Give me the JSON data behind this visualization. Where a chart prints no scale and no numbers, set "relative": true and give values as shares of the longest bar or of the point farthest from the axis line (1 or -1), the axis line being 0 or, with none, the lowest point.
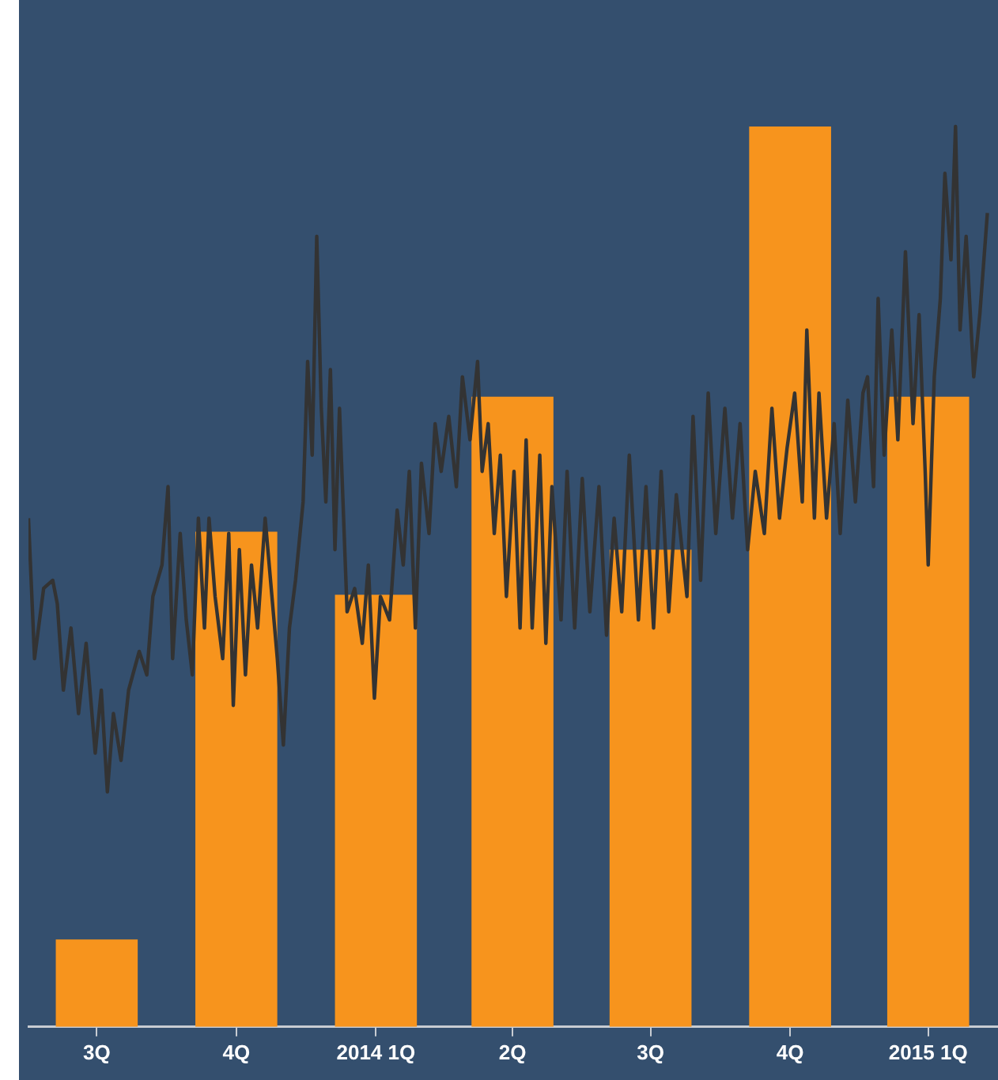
{
  "chart_data": {
    "type": "bar",
    "relative": true,
    "tick_labels": "x",
    "x": [
      "2013-08-15",
      "2013-11-15",
      "2014-02-15",
      "2014-05-16",
      "2014-08-15",
      "2014-11-15",
      "2015-02-14"
    ],
    "xlim": [
      "2013-07-01",
      "2015-04-01"
    ],
    "xticks": [
      {
        "value": "2013-08-15",
        "label": "3Q"
      },
      {
        "value": "2013-11-15",
        "label": "4Q"
      },
      {
        "value": "2014-02-15",
        "label": "2014 1Q"
      },
      {
        "value": "2014-05-16",
        "label": "2Q"
      },
      {
        "value": "2014-08-15",
        "label": "3Q"
      },
      {
        "value": "2014-11-15",
        "label": "4Q"
      },
      {
        "value": "2015-02-14",
        "label": "2015 1Q"
      }
    ],
    "series": [
      {
        "color": "#f7941d",
        "values": [
          0.097,
          0.55,
          0.48,
          0.7,
          0.53,
          1.0,
          0.7
        ]
      },
      {
        "type": "line",
        "color": "#333333",
        "x": [
          "2013-07-01",
          "2013-07-05",
          "2013-07-11",
          "2013-07-17",
          "2013-07-20",
          "2013-07-24",
          "2013-07-29",
          "2013-08-03",
          "2013-08-08",
          "2013-08-14",
          "2013-08-18",
          "2013-08-22",
          "2013-08-26",
          "2013-08-31",
          "2013-09-05",
          "2013-09-12",
          "2013-09-17",
          "2013-09-21",
          "2013-09-27",
          "2013-10-01",
          "2013-10-04",
          "2013-10-09",
          "2013-10-13",
          "2013-10-17",
          "2013-10-21",
          "2013-10-25",
          "2013-10-28",
          "2013-11-01",
          "2013-11-06",
          "2013-11-10",
          "2013-11-13",
          "2013-11-17",
          "2013-11-21",
          "2013-11-25",
          "2013-11-29",
          "2013-12-04",
          "2013-12-08",
          "2013-12-12",
          "2013-12-16",
          "2013-12-20",
          "2013-12-24",
          "2013-12-29",
          "2014-01-01",
          "2014-01-04",
          "2014-01-07",
          "2014-01-10",
          "2014-01-13",
          "2014-01-16",
          "2014-01-19",
          "2014-01-22",
          "2014-01-27",
          "2014-02-01",
          "2014-02-06",
          "2014-02-10",
          "2014-02-14",
          "2014-02-18",
          "2014-02-24",
          "2014-03-01",
          "2014-03-05",
          "2014-03-09",
          "2014-03-13",
          "2014-03-17",
          "2014-03-22",
          "2014-03-26",
          "2014-03-30",
          "2014-04-04",
          "2014-04-09",
          "2014-04-13",
          "2014-04-18",
          "2014-04-23",
          "2014-04-26",
          "2014-04-30",
          "2014-05-04",
          "2014-05-08",
          "2014-05-12",
          "2014-05-17",
          "2014-05-21",
          "2014-05-25",
          "2014-05-29",
          "2014-06-03",
          "2014-06-07",
          "2014-06-11",
          "2014-06-17",
          "2014-06-21",
          "2014-06-26",
          "2014-07-01",
          "2014-07-06",
          "2014-07-12",
          "2014-07-17",
          "2014-07-22",
          "2014-07-27",
          "2014-08-01",
          "2014-08-07",
          "2014-08-12",
          "2014-08-17",
          "2014-08-22",
          "2014-08-27",
          "2014-09-01",
          "2014-09-08",
          "2014-09-12",
          "2014-09-17",
          "2014-09-22",
          "2014-09-27",
          "2014-10-03",
          "2014-10-08",
          "2014-10-13",
          "2014-10-18",
          "2014-10-23",
          "2014-10-29",
          "2014-11-03",
          "2014-11-08",
          "2014-11-13",
          "2014-11-18",
          "2014-11-23",
          "2014-11-26",
          "2014-12-01",
          "2014-12-04",
          "2014-12-09",
          "2014-12-14",
          "2014-12-18",
          "2014-12-23",
          "2014-12-28",
          "2015-01-02",
          "2015-01-05",
          "2015-01-09",
          "2015-01-12",
          "2015-01-16",
          "2015-01-21",
          "2015-01-25",
          "2015-01-30",
          "2015-02-04",
          "2015-02-08",
          "2015-02-12",
          "2015-02-14",
          "2015-02-18",
          "2015-02-22",
          "2015-02-25",
          "2015-03-01",
          "2015-03-04",
          "2015-03-07",
          "2015-03-11",
          "2015-03-16",
          "2015-03-20",
          "2015-03-25"
        ],
        "values": [
          0.565,
          0.409,
          0.487,
          0.496,
          0.47,
          0.374,
          0.443,
          0.348,
          0.426,
          0.304,
          0.374,
          0.261,
          0.348,
          0.296,
          0.374,
          0.417,
          0.391,
          0.478,
          0.513,
          0.6,
          0.409,
          0.548,
          0.452,
          0.391,
          0.565,
          0.443,
          0.565,
          0.478,
          0.409,
          0.548,
          0.357,
          0.53,
          0.391,
          0.513,
          0.443,
          0.565,
          0.487,
          0.409,
          0.313,
          0.443,
          0.496,
          0.583,
          0.739,
          0.635,
          0.878,
          0.687,
          0.583,
          0.73,
          0.53,
          0.687,
          0.461,
          0.487,
          0.426,
          0.513,
          0.365,
          0.478,
          0.452,
          0.574,
          0.513,
          0.617,
          0.443,
          0.626,
          0.548,
          0.67,
          0.617,
          0.678,
          0.6,
          0.722,
          0.652,
          0.739,
          0.617,
          0.67,
          0.548,
          0.635,
          0.478,
          0.617,
          0.443,
          0.652,
          0.443,
          0.635,
          0.426,
          0.6,
          0.452,
          0.617,
          0.443,
          0.609,
          0.461,
          0.6,
          0.435,
          0.565,
          0.461,
          0.635,
          0.452,
          0.6,
          0.443,
          0.617,
          0.461,
          0.591,
          0.478,
          0.678,
          0.496,
          0.704,
          0.548,
          0.687,
          0.565,
          0.67,
          0.53,
          0.617,
          0.548,
          0.687,
          0.565,
          0.643,
          0.704,
          0.583,
          0.774,
          0.565,
          0.704,
          0.565,
          0.67,
          0.548,
          0.696,
          0.583,
          0.704,
          0.722,
          0.6,
          0.809,
          0.635,
          0.774,
          0.652,
          0.861,
          0.67,
          0.791,
          0.617,
          0.513,
          0.722,
          0.809,
          0.948,
          0.852,
          1.0,
          0.774,
          0.878,
          0.722,
          0.791,
          0.904
        ]
      }
    ]
  }
}
